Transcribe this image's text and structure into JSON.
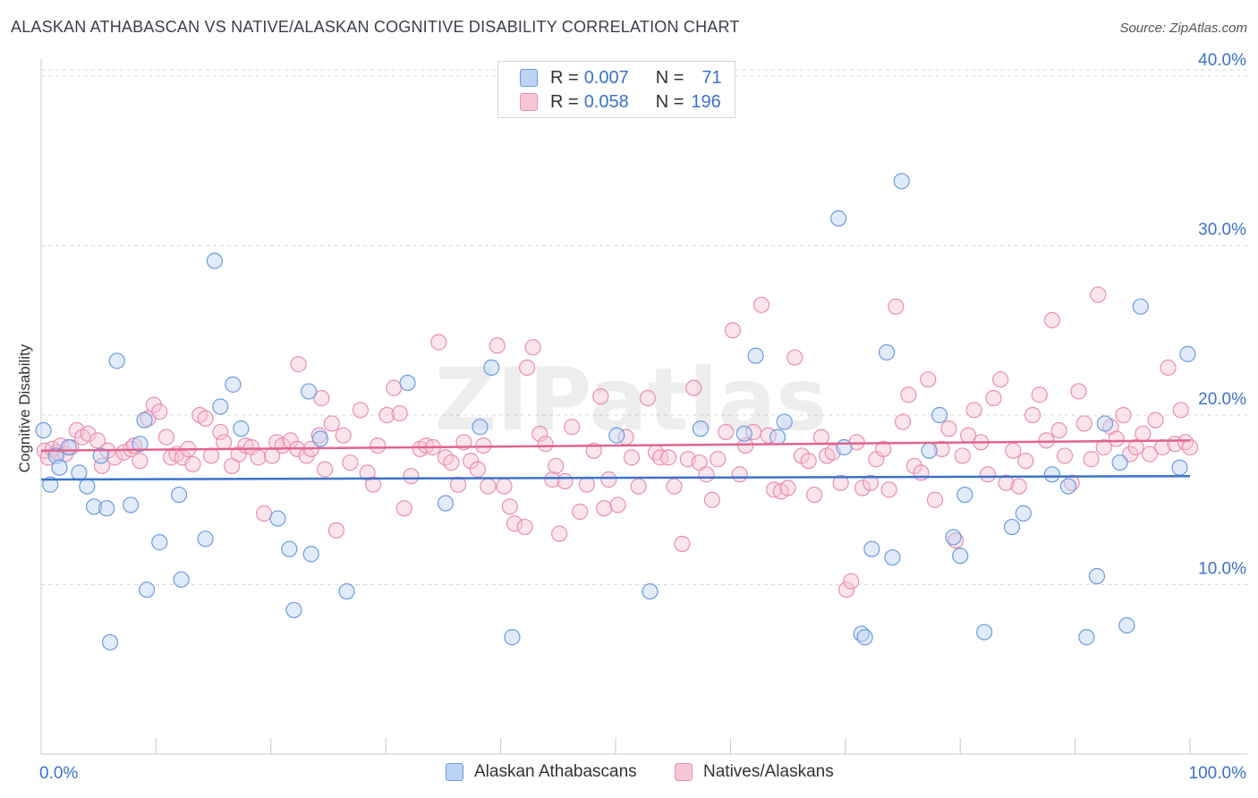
{
  "title": "ALASKAN ATHABASCAN VS NATIVE/ALASKAN COGNITIVE DISABILITY CORRELATION CHART",
  "source": "Source: ZipAtlas.com",
  "watermark": "ZIPatlas",
  "legend": {
    "rows": [
      {
        "r_label": "R = ",
        "r_value": "0.007",
        "n_label": "N = ",
        "n_value": "71"
      },
      {
        "r_label": "R = ",
        "r_value": "0.058",
        "n_label": "N = ",
        "n_value": "196"
      }
    ]
  },
  "series_labels": {
    "blue": "Alaskan Athabascans",
    "pink": "Natives/Alaskans"
  },
  "colors": {
    "blue": "#6a9be0",
    "blue_fill": "#bcd3f3",
    "pink": "#ea8fae",
    "pink_fill": "#f7c6d6",
    "blue_line": "#3b73c9",
    "pink_line": "#e0648e",
    "axis_text": "#3b73c9"
  },
  "chart_data": {
    "type": "scatter",
    "xlabel": "",
    "ylabel": "Cognitive Disability",
    "x_tick_labels": [
      "0.0%",
      "100.0%"
    ],
    "y_tick_labels": [
      "10.0%",
      "20.0%",
      "30.0%",
      "40.0%"
    ],
    "xlim": [
      0,
      100
    ],
    "ylim": [
      0,
      41
    ],
    "grid": true,
    "legend_placement": "top-center",
    "series": [
      {
        "name": "Alaskan Athabascans",
        "color": "#6a9be0",
        "trend": [
          [
            0,
            16.2
          ],
          [
            100,
            16.4
          ]
        ],
        "points": [
          [
            0.2,
            19.1
          ],
          [
            0.8,
            15.9
          ],
          [
            1.3,
            17.6
          ],
          [
            1.6,
            16.9
          ],
          [
            2.4,
            18.1
          ],
          [
            3.3,
            16.6
          ],
          [
            4.0,
            15.8
          ],
          [
            4.6,
            14.6
          ],
          [
            5.2,
            17.6
          ],
          [
            5.7,
            14.5
          ],
          [
            6.0,
            6.6
          ],
          [
            6.6,
            23.2
          ],
          [
            7.8,
            14.7
          ],
          [
            8.6,
            18.3
          ],
          [
            9.0,
            19.7
          ],
          [
            9.2,
            9.7
          ],
          [
            10.3,
            12.5
          ],
          [
            12.0,
            15.3
          ],
          [
            12.2,
            10.3
          ],
          [
            14.3,
            12.7
          ],
          [
            15.1,
            29.1
          ],
          [
            15.6,
            20.5
          ],
          [
            16.7,
            21.8
          ],
          [
            17.4,
            19.2
          ],
          [
            20.6,
            13.9
          ],
          [
            21.6,
            12.1
          ],
          [
            22.0,
            8.5
          ],
          [
            23.3,
            21.4
          ],
          [
            23.5,
            11.8
          ],
          [
            24.3,
            18.6
          ],
          [
            26.6,
            9.6
          ],
          [
            31.9,
            21.9
          ],
          [
            35.2,
            14.8
          ],
          [
            38.2,
            19.3
          ],
          [
            39.2,
            22.8
          ],
          [
            41.0,
            6.9
          ],
          [
            50.1,
            18.8
          ],
          [
            53.0,
            9.6
          ],
          [
            57.4,
            19.2
          ],
          [
            61.2,
            18.9
          ],
          [
            62.2,
            23.5
          ],
          [
            64.1,
            18.7
          ],
          [
            64.7,
            19.6
          ],
          [
            69.4,
            31.6
          ],
          [
            69.9,
            18.1
          ],
          [
            71.4,
            7.1
          ],
          [
            71.7,
            6.9
          ],
          [
            72.3,
            12.1
          ],
          [
            73.6,
            23.7
          ],
          [
            74.1,
            11.6
          ],
          [
            74.9,
            33.8
          ],
          [
            77.3,
            17.9
          ],
          [
            78.2,
            20.0
          ],
          [
            79.4,
            12.8
          ],
          [
            80.0,
            11.7
          ],
          [
            80.4,
            15.3
          ],
          [
            82.1,
            7.2
          ],
          [
            84.5,
            13.4
          ],
          [
            85.5,
            14.2
          ],
          [
            88.0,
            16.5
          ],
          [
            89.4,
            15.8
          ],
          [
            91.0,
            6.9
          ],
          [
            91.9,
            10.5
          ],
          [
            92.6,
            19.5
          ],
          [
            93.9,
            17.2
          ],
          [
            94.5,
            7.6
          ],
          [
            95.7,
            26.4
          ],
          [
            99.1,
            16.9
          ],
          [
            99.8,
            23.6
          ]
        ]
      },
      {
        "name": "Natives/Alaskans",
        "color": "#ea8fae",
        "trend": [
          [
            0,
            17.9
          ],
          [
            100,
            18.5
          ]
        ],
        "points": [
          [
            0.3,
            17.9
          ],
          [
            0.6,
            17.5
          ],
          [
            1.0,
            18.0
          ],
          [
            1.4,
            17.8
          ],
          [
            1.7,
            18.2
          ],
          [
            2.1,
            17.7
          ],
          [
            2.6,
            18.1
          ],
          [
            3.1,
            19.1
          ],
          [
            3.6,
            18.7
          ],
          [
            4.1,
            18.9
          ],
          [
            4.9,
            18.5
          ],
          [
            5.3,
            17.0
          ],
          [
            5.8,
            17.9
          ],
          [
            6.4,
            17.5
          ],
          [
            7.2,
            17.8
          ],
          [
            7.8,
            18.0
          ],
          [
            8.1,
            18.2
          ],
          [
            8.6,
            17.3
          ],
          [
            9.3,
            19.8
          ],
          [
            9.8,
            20.6
          ],
          [
            10.3,
            20.2
          ],
          [
            10.9,
            18.7
          ],
          [
            11.3,
            17.5
          ],
          [
            11.8,
            17.7
          ],
          [
            12.3,
            17.5
          ],
          [
            12.8,
            18.0
          ],
          [
            13.2,
            17.1
          ],
          [
            13.8,
            20.0
          ],
          [
            14.3,
            19.8
          ],
          [
            14.8,
            17.6
          ],
          [
            15.6,
            19.0
          ],
          [
            15.9,
            18.4
          ],
          [
            16.6,
            17.0
          ],
          [
            17.2,
            17.7
          ],
          [
            17.8,
            18.2
          ],
          [
            18.3,
            18.1
          ],
          [
            18.9,
            17.5
          ],
          [
            19.4,
            14.2
          ],
          [
            20.1,
            17.6
          ],
          [
            20.5,
            18.4
          ],
          [
            21.0,
            18.2
          ],
          [
            21.7,
            18.5
          ],
          [
            22.3,
            18.0
          ],
          [
            22.4,
            23.0
          ],
          [
            23.1,
            17.6
          ],
          [
            23.5,
            18.0
          ],
          [
            24.2,
            18.8
          ],
          [
            24.4,
            21.0
          ],
          [
            24.7,
            16.8
          ],
          [
            25.3,
            19.5
          ],
          [
            25.7,
            13.2
          ],
          [
            26.3,
            18.8
          ],
          [
            26.9,
            17.2
          ],
          [
            27.8,
            20.3
          ],
          [
            28.4,
            16.6
          ],
          [
            28.9,
            15.9
          ],
          [
            29.3,
            18.2
          ],
          [
            30.1,
            20.0
          ],
          [
            30.7,
            21.6
          ],
          [
            31.2,
            20.1
          ],
          [
            31.6,
            14.5
          ],
          [
            32.2,
            16.4
          ],
          [
            33.0,
            18.0
          ],
          [
            33.5,
            18.2
          ],
          [
            34.1,
            18.1
          ],
          [
            34.6,
            24.3
          ],
          [
            35.2,
            17.5
          ],
          [
            35.7,
            17.2
          ],
          [
            36.3,
            15.9
          ],
          [
            36.8,
            18.4
          ],
          [
            37.4,
            17.3
          ],
          [
            38.0,
            16.8
          ],
          [
            38.5,
            18.2
          ],
          [
            38.9,
            15.8
          ],
          [
            39.7,
            24.1
          ],
          [
            40.3,
            15.8
          ],
          [
            40.8,
            14.6
          ],
          [
            41.2,
            13.6
          ],
          [
            42.1,
            13.4
          ],
          [
            42.3,
            22.8
          ],
          [
            42.8,
            24.0
          ],
          [
            43.4,
            18.9
          ],
          [
            43.9,
            18.3
          ],
          [
            44.5,
            16.2
          ],
          [
            44.8,
            17.0
          ],
          [
            45.1,
            13.0
          ],
          [
            45.6,
            16.1
          ],
          [
            46.2,
            19.3
          ],
          [
            46.9,
            14.3
          ],
          [
            47.5,
            15.9
          ],
          [
            48.1,
            17.9
          ],
          [
            48.7,
            21.1
          ],
          [
            49.0,
            14.5
          ],
          [
            49.4,
            16.2
          ],
          [
            50.2,
            14.7
          ],
          [
            50.9,
            18.7
          ],
          [
            51.4,
            17.5
          ],
          [
            52.0,
            15.8
          ],
          [
            52.8,
            21.0
          ],
          [
            53.5,
            17.8
          ],
          [
            53.9,
            17.5
          ],
          [
            54.6,
            17.5
          ],
          [
            55.1,
            15.8
          ],
          [
            55.8,
            12.4
          ],
          [
            56.3,
            17.4
          ],
          [
            56.8,
            21.6
          ],
          [
            57.3,
            17.2
          ],
          [
            57.9,
            16.5
          ],
          [
            58.4,
            15.0
          ],
          [
            58.9,
            17.4
          ],
          [
            59.6,
            19.0
          ],
          [
            60.2,
            25.0
          ],
          [
            60.8,
            16.5
          ],
          [
            61.3,
            18.2
          ],
          [
            62.0,
            19.0
          ],
          [
            62.7,
            26.5
          ],
          [
            63.3,
            18.8
          ],
          [
            63.8,
            15.6
          ],
          [
            64.4,
            15.5
          ],
          [
            65.0,
            15.7
          ],
          [
            65.6,
            23.4
          ],
          [
            66.2,
            17.6
          ],
          [
            66.8,
            17.3
          ],
          [
            67.3,
            15.3
          ],
          [
            67.9,
            18.7
          ],
          [
            68.4,
            17.6
          ],
          [
            68.9,
            17.8
          ],
          [
            69.6,
            16.0
          ],
          [
            70.1,
            9.7
          ],
          [
            70.5,
            10.2
          ],
          [
            71.0,
            18.4
          ],
          [
            71.5,
            15.7
          ],
          [
            72.2,
            16.0
          ],
          [
            72.7,
            17.4
          ],
          [
            73.3,
            18.0
          ],
          [
            73.8,
            15.6
          ],
          [
            74.4,
            26.4
          ],
          [
            75.0,
            19.6
          ],
          [
            75.5,
            21.2
          ],
          [
            76.0,
            17.0
          ],
          [
            76.6,
            16.6
          ],
          [
            77.2,
            22.1
          ],
          [
            77.8,
            15.0
          ],
          [
            78.4,
            18.0
          ],
          [
            79.0,
            19.2
          ],
          [
            79.6,
            12.6
          ],
          [
            80.2,
            17.6
          ],
          [
            80.7,
            18.8
          ],
          [
            81.2,
            20.3
          ],
          [
            81.8,
            18.4
          ],
          [
            82.4,
            16.5
          ],
          [
            82.9,
            21.0
          ],
          [
            83.5,
            22.1
          ],
          [
            84.0,
            16.0
          ],
          [
            84.6,
            17.9
          ],
          [
            85.1,
            15.8
          ],
          [
            85.7,
            17.3
          ],
          [
            86.3,
            20.0
          ],
          [
            86.9,
            21.2
          ],
          [
            87.5,
            18.5
          ],
          [
            88.0,
            25.6
          ],
          [
            88.6,
            19.1
          ],
          [
            89.1,
            17.6
          ],
          [
            89.7,
            16.0
          ],
          [
            90.3,
            21.4
          ],
          [
            90.8,
            19.5
          ],
          [
            91.4,
            17.4
          ],
          [
            92.0,
            27.1
          ],
          [
            92.5,
            18.1
          ],
          [
            93.1,
            19.3
          ],
          [
            93.6,
            18.6
          ],
          [
            94.2,
            20.0
          ],
          [
            94.8,
            17.7
          ],
          [
            95.3,
            18.1
          ],
          [
            95.9,
            18.9
          ],
          [
            96.5,
            17.7
          ],
          [
            97.0,
            19.7
          ],
          [
            97.6,
            18.1
          ],
          [
            98.1,
            22.8
          ],
          [
            98.7,
            18.3
          ],
          [
            99.2,
            20.3
          ],
          [
            99.6,
            18.4
          ],
          [
            100.0,
            18.1
          ]
        ]
      }
    ]
  }
}
